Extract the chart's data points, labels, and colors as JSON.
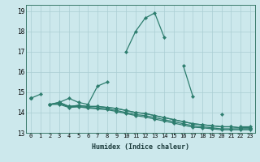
{
  "xlabel": "Humidex (Indice chaleur)",
  "x_values": [
    0,
    1,
    2,
    3,
    4,
    5,
    6,
    7,
    8,
    9,
    10,
    11,
    12,
    13,
    14,
    15,
    16,
    17,
    18,
    19,
    20,
    21,
    22,
    23
  ],
  "line1": [
    14.7,
    14.9,
    null,
    14.5,
    14.7,
    14.5,
    14.4,
    15.3,
    15.5,
    null,
    17.0,
    18.0,
    18.65,
    18.9,
    17.7,
    null,
    16.3,
    14.8,
    null,
    null,
    13.9,
    null,
    13.3,
    13.3
  ],
  "line2": [
    14.7,
    null,
    14.4,
    14.5,
    14.3,
    14.35,
    14.3,
    14.3,
    14.25,
    14.2,
    14.1,
    14.0,
    13.95,
    13.85,
    13.75,
    13.65,
    13.55,
    13.45,
    13.4,
    13.35,
    13.3,
    13.3,
    13.25,
    13.25
  ],
  "line3": [
    14.7,
    null,
    14.4,
    14.5,
    14.3,
    14.35,
    14.3,
    14.3,
    14.25,
    14.2,
    14.1,
    14.0,
    13.95,
    13.85,
    13.75,
    13.65,
    13.55,
    13.45,
    13.4,
    13.35,
    13.3,
    13.3,
    13.25,
    13.25
  ],
  "line4": [
    14.7,
    null,
    14.4,
    14.45,
    14.28,
    14.3,
    14.25,
    14.22,
    14.18,
    14.1,
    14.0,
    13.9,
    13.85,
    13.75,
    13.65,
    13.55,
    13.45,
    13.35,
    13.3,
    13.25,
    13.2,
    13.2,
    13.2,
    13.2
  ],
  "line5": [
    14.7,
    null,
    14.4,
    14.4,
    14.25,
    14.28,
    14.22,
    14.18,
    14.14,
    14.05,
    13.95,
    13.85,
    13.78,
    13.68,
    13.58,
    13.48,
    13.38,
    13.28,
    13.25,
    13.2,
    13.15,
    13.15,
    13.15,
    13.15
  ],
  "ylim": [
    13.0,
    19.3
  ],
  "yticks": [
    13,
    14,
    15,
    16,
    17,
    18,
    19
  ],
  "xticks": [
    0,
    1,
    2,
    3,
    4,
    5,
    6,
    7,
    8,
    9,
    10,
    11,
    12,
    13,
    14,
    15,
    16,
    17,
    18,
    19,
    20,
    21,
    22,
    23
  ],
  "line_color": "#2d7d6e",
  "bg_color": "#cce8ec",
  "grid_color": "#aacdd3"
}
